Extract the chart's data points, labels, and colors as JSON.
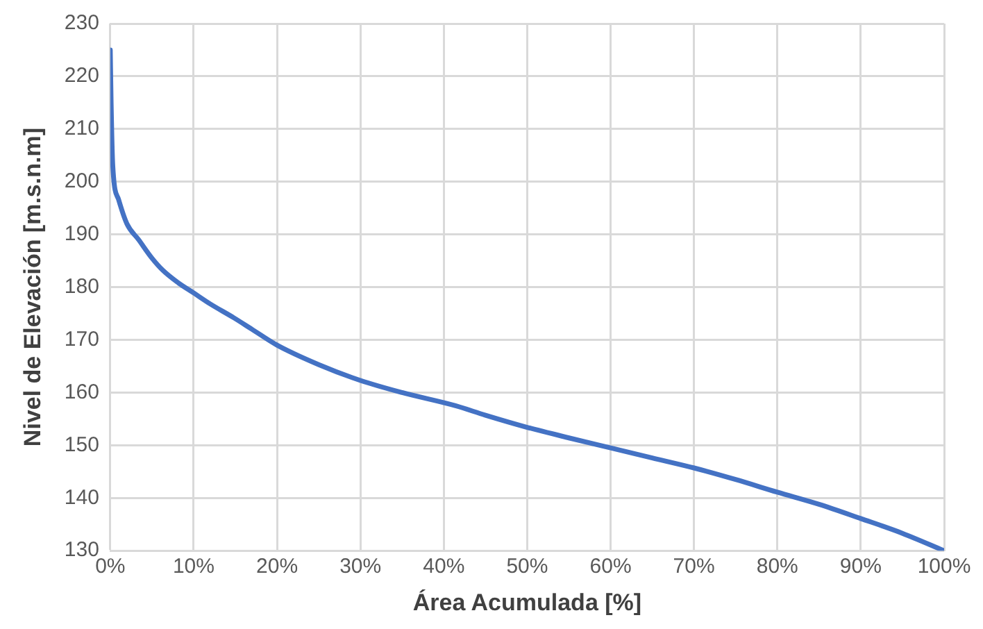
{
  "chart_data": {
    "type": "line",
    "xlabel": "Área Acumulada [%]",
    "ylabel": "Nivel de Elevación [m.s.n.m]",
    "series": [
      {
        "color": "#4472c4",
        "x": [
          0,
          0.1,
          0.3,
          1,
          2,
          3.4,
          5,
          6.3,
          8,
          10,
          12,
          14.8,
          17,
          20,
          25,
          30,
          35,
          41.4,
          45,
          50,
          55,
          60,
          65,
          70,
          75,
          80,
          85,
          90,
          95,
          100
        ],
        "values": [
          225,
          215,
          203,
          196.6,
          192,
          189,
          185.5,
          183.2,
          181,
          178.9,
          176.8,
          174.2,
          172,
          169,
          165.3,
          162.3,
          160,
          157.5,
          155.7,
          153.4,
          151.4,
          149.5,
          147.6,
          145.7,
          143.5,
          141.1,
          138.8,
          136.1,
          133.3,
          130
        ]
      }
    ],
    "xlim": [
      0,
      100
    ],
    "ylim": [
      130,
      230
    ],
    "xticks": [
      {
        "value": 0,
        "label": "0%"
      },
      {
        "value": 10,
        "label": "10%"
      },
      {
        "value": 20,
        "label": "20%"
      },
      {
        "value": 30,
        "label": "30%"
      },
      {
        "value": 40,
        "label": "40%"
      },
      {
        "value": 50,
        "label": "50%"
      },
      {
        "value": 60,
        "label": "60%"
      },
      {
        "value": 70,
        "label": "70%"
      },
      {
        "value": 80,
        "label": "80%"
      },
      {
        "value": 90,
        "label": "90%"
      },
      {
        "value": 100,
        "label": "100%"
      }
    ],
    "yticks": [
      130,
      140,
      150,
      160,
      170,
      180,
      190,
      200,
      210,
      220,
      230
    ],
    "grid": true,
    "legend": false,
    "marker": "none",
    "line_style": "solid"
  }
}
